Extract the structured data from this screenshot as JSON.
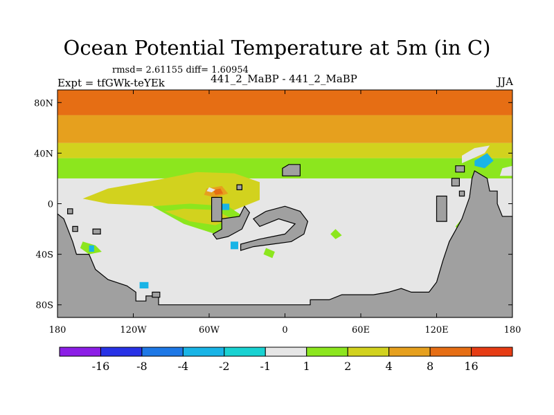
{
  "chart_data": {
    "type": "heatmap",
    "title": "Ocean Potential Temperature at 5m (in C)",
    "stats_text": "rmsd= 2.61155 diff= 1.60954",
    "experiment_label": "Expt = tfGWk-teYEk",
    "comparison_label": "441_2_MaBP - 441_2_MaBP",
    "season_label": "JJA",
    "x_ticks": [
      {
        "value": -180,
        "label": "180"
      },
      {
        "value": -120,
        "label": "120W"
      },
      {
        "value": -60,
        "label": "60W"
      },
      {
        "value": 0,
        "label": "0"
      },
      {
        "value": 60,
        "label": "60E"
      },
      {
        "value": 120,
        "label": "120E"
      },
      {
        "value": 180,
        "label": "180"
      }
    ],
    "y_ticks": [
      {
        "value": 80,
        "label": "80N"
      },
      {
        "value": 40,
        "label": "40N"
      },
      {
        "value": 0,
        "label": "0"
      },
      {
        "value": -40,
        "label": "40S"
      },
      {
        "value": -80,
        "label": "80S"
      }
    ],
    "xlim": [
      -180,
      180
    ],
    "ylim": [
      -90,
      90
    ],
    "colorbar": {
      "levels": [
        "-16",
        "-8",
        "-4",
        "-2",
        "-1",
        "1",
        "2",
        "4",
        "8",
        "16"
      ],
      "colors": [
        "#8c1ee6",
        "#2832e6",
        "#1e78e6",
        "#19b4e6",
        "#19d2d2",
        "#e6e6e6",
        "#8ce61e",
        "#d2d21e",
        "#e6a01e",
        "#e66e14",
        "#e63c14"
      ]
    },
    "bands": [
      {
        "lat_top": 90,
        "lat_bottom": 70,
        "color": "#e66e14"
      },
      {
        "lat_top": 70,
        "lat_bottom": 48,
        "color": "#e6a01e"
      },
      {
        "lat_top": 48,
        "lat_bottom": 36,
        "color": "#d2d21e"
      },
      {
        "lat_top": 36,
        "lat_bottom": 20,
        "color": "#8ce61e"
      }
    ],
    "patches": [
      {
        "color": "#d2d21e",
        "points": [
          [
            -100,
            19
          ],
          [
            -70,
            25
          ],
          [
            -40,
            24
          ],
          [
            -20,
            17
          ],
          [
            -20,
            3
          ],
          [
            -40,
            -5
          ],
          [
            -70,
            -8
          ],
          [
            -100,
            -2
          ],
          [
            -140,
            0
          ],
          [
            -160,
            4
          ],
          [
            -140,
            12
          ]
        ]
      },
      {
        "color": "#8ce61e",
        "points": [
          [
            -105,
            -2
          ],
          [
            -80,
            -16
          ],
          [
            -55,
            -24
          ],
          [
            -35,
            -20
          ],
          [
            -30,
            -12
          ],
          [
            -45,
            -2
          ],
          [
            -75,
            0
          ]
        ]
      },
      {
        "color": "#d2d21e",
        "points": [
          [
            -95,
            -6
          ],
          [
            -75,
            -14
          ],
          [
            -55,
            -17
          ],
          [
            -42,
            -12
          ],
          [
            -55,
            -5
          ],
          [
            -80,
            -4
          ]
        ]
      },
      {
        "color": "#e6a01e",
        "points": [
          [
            -62,
            12
          ],
          [
            -50,
            14
          ],
          [
            -45,
            8
          ],
          [
            -55,
            5
          ],
          [
            -64,
            7
          ]
        ]
      },
      {
        "color": "#e66e14",
        "points": [
          [
            -57,
            11
          ],
          [
            -51,
            12
          ],
          [
            -49,
            8
          ],
          [
            -55,
            7
          ]
        ]
      },
      {
        "color": "#8ce61e",
        "points": [
          [
            -160,
            -30
          ],
          [
            -150,
            -33
          ],
          [
            -145,
            -38
          ],
          [
            -155,
            -40
          ],
          [
            -162,
            -35
          ]
        ]
      },
      {
        "color": "#8ce61e",
        "points": [
          [
            140,
            -12
          ],
          [
            145,
            -20
          ],
          [
            139,
            -25
          ],
          [
            135,
            -18
          ]
        ]
      },
      {
        "color": "#8ce61e",
        "points": [
          [
            -15,
            -35
          ],
          [
            -8,
            -38
          ],
          [
            -10,
            -43
          ],
          [
            -17,
            -40
          ]
        ]
      },
      {
        "color": "#8ce61e",
        "points": [
          [
            40,
            -20
          ],
          [
            45,
            -25
          ],
          [
            40,
            -28
          ],
          [
            36,
            -24
          ]
        ]
      },
      {
        "color": "#19b4e6",
        "points": [
          [
            150,
            34
          ],
          [
            160,
            40
          ],
          [
            165,
            34
          ],
          [
            158,
            28
          ],
          [
            150,
            30
          ]
        ]
      },
      {
        "color": "#e6e6e6",
        "points": [
          [
            140,
            32
          ],
          [
            158,
            40
          ],
          [
            162,
            46
          ],
          [
            150,
            44
          ],
          [
            140,
            38
          ]
        ]
      },
      {
        "color": "#e6e6e6",
        "points": [
          [
            170,
            22
          ],
          [
            180,
            22
          ],
          [
            180,
            30
          ],
          [
            172,
            28
          ]
        ]
      },
      {
        "color": "#19b4e6",
        "points": [
          [
            -50,
            0
          ],
          [
            -44,
            0
          ],
          [
            -44,
            -5
          ],
          [
            -50,
            -5
          ]
        ]
      },
      {
        "color": "#19b4e6",
        "points": [
          [
            -43,
            -30
          ],
          [
            -37,
            -30
          ],
          [
            -37,
            -36
          ],
          [
            -43,
            -36
          ]
        ]
      },
      {
        "color": "#19b4e6",
        "points": [
          [
            -155,
            -33
          ],
          [
            -151,
            -33
          ],
          [
            -151,
            -38
          ],
          [
            -155,
            -38
          ]
        ]
      },
      {
        "color": "#19b4e6",
        "points": [
          [
            -115,
            -62
          ],
          [
            -108,
            -62
          ],
          [
            -108,
            -67
          ],
          [
            -115,
            -67
          ]
        ]
      },
      {
        "color": "#e6e6e6",
        "points": [
          [
            -60,
            13
          ],
          [
            -55,
            11
          ],
          [
            -58,
            9
          ],
          [
            -62,
            10
          ]
        ]
      }
    ],
    "land": [
      {
        "name": "antarctica",
        "points": [
          [
            -180,
            -90
          ],
          [
            180,
            -90
          ],
          [
            180,
            -10
          ],
          [
            172,
            -10
          ],
          [
            168,
            0
          ],
          [
            168,
            10
          ],
          [
            162,
            10
          ],
          [
            160,
            20
          ],
          [
            150,
            26
          ],
          [
            148,
            20
          ],
          [
            146,
            5
          ],
          [
            140,
            -12
          ],
          [
            130,
            -30
          ],
          [
            125,
            -45
          ],
          [
            120,
            -62
          ],
          [
            114,
            -70
          ],
          [
            100,
            -70
          ],
          [
            92,
            -67
          ],
          [
            82,
            -70
          ],
          [
            70,
            -72
          ],
          [
            45,
            -72
          ],
          [
            35,
            -76
          ],
          [
            20,
            -76
          ],
          [
            20,
            -80
          ],
          [
            -30,
            -80
          ],
          [
            -60,
            -80
          ],
          [
            -100,
            -80
          ],
          [
            -100,
            -73
          ],
          [
            -110,
            -73
          ],
          [
            -110,
            -77
          ],
          [
            -118,
            -77
          ],
          [
            -118,
            -70
          ],
          [
            -125,
            -65
          ],
          [
            -140,
            -60
          ],
          [
            -150,
            -52
          ],
          [
            -155,
            -40
          ],
          [
            -165,
            -40
          ],
          [
            -168,
            -30
          ],
          [
            -175,
            -12
          ],
          [
            -180,
            -8
          ]
        ]
      },
      {
        "name": "north-continent",
        "points": [
          [
            3,
            31
          ],
          [
            12,
            31
          ],
          [
            12,
            22
          ],
          [
            -2,
            22
          ],
          [
            -2,
            28
          ]
        ]
      },
      {
        "name": "equatorial-island",
        "points": [
          [
            -58,
            5
          ],
          [
            -50,
            5
          ],
          [
            -50,
            -14
          ],
          [
            -58,
            -14
          ]
        ]
      },
      {
        "name": "central-continent",
        "points": [
          [
            -50,
            -12
          ],
          [
            -36,
            -10
          ],
          [
            -32,
            -2
          ],
          [
            -28,
            -7
          ],
          [
            -34,
            -20
          ],
          [
            -45,
            -26
          ],
          [
            -54,
            -28
          ],
          [
            -57,
            -24
          ],
          [
            -50,
            -20
          ]
        ]
      },
      {
        "name": "ring-continent",
        "points": [
          [
            -25,
            -12
          ],
          [
            -15,
            -6
          ],
          [
            0,
            -2
          ],
          [
            12,
            -6
          ],
          [
            18,
            -14
          ],
          [
            15,
            -24
          ],
          [
            5,
            -30
          ],
          [
            -10,
            -32
          ],
          [
            -25,
            -34
          ],
          [
            -35,
            -37
          ],
          [
            -35,
            -32
          ],
          [
            -20,
            -28
          ],
          [
            0,
            -24
          ],
          [
            8,
            -16
          ],
          [
            -5,
            -12
          ],
          [
            -20,
            -18
          ]
        ]
      },
      {
        "name": "nw-islet",
        "points": [
          [
            -38,
            15
          ],
          [
            -34,
            15
          ],
          [
            -34,
            11
          ],
          [
            -38,
            11
          ]
        ]
      },
      {
        "name": "sw-islet-a",
        "points": [
          [
            -168,
            -18
          ],
          [
            -164,
            -18
          ],
          [
            -164,
            -22
          ],
          [
            -168,
            -22
          ]
        ]
      },
      {
        "name": "sw-islet-b",
        "points": [
          [
            -152,
            -20
          ],
          [
            -146,
            -20
          ],
          [
            -146,
            -24
          ],
          [
            -152,
            -24
          ]
        ]
      },
      {
        "name": "sw-islet-c",
        "points": [
          [
            -172,
            -4
          ],
          [
            -168,
            -4
          ],
          [
            -168,
            -8
          ],
          [
            -172,
            -8
          ]
        ]
      },
      {
        "name": "east-islet-a",
        "points": [
          [
            120,
            6
          ],
          [
            128,
            6
          ],
          [
            128,
            -14
          ],
          [
            120,
            -14
          ]
        ]
      },
      {
        "name": "east-islet-b",
        "points": [
          [
            135,
            30
          ],
          [
            142,
            30
          ],
          [
            142,
            25
          ],
          [
            135,
            25
          ]
        ]
      },
      {
        "name": "east-islet-c",
        "points": [
          [
            132,
            20
          ],
          [
            138,
            20
          ],
          [
            138,
            14
          ],
          [
            132,
            14
          ]
        ]
      },
      {
        "name": "east-islet-d",
        "points": [
          [
            138,
            10
          ],
          [
            142,
            10
          ],
          [
            142,
            6
          ],
          [
            138,
            6
          ]
        ]
      },
      {
        "name": "south-islet",
        "points": [
          [
            -105,
            -70
          ],
          [
            -99,
            -70
          ],
          [
            -99,
            -74
          ],
          [
            -105,
            -74
          ]
        ]
      }
    ]
  }
}
